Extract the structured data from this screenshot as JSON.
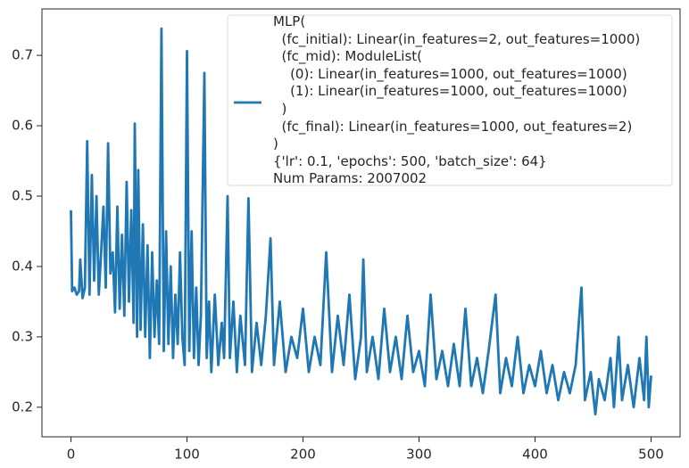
{
  "chart_data": {
    "type": "line",
    "x": [
      0,
      1,
      3,
      5,
      7,
      8,
      10,
      12,
      14,
      16,
      18,
      20,
      22,
      24,
      26,
      28,
      30,
      32,
      34,
      36,
      38,
      40,
      42,
      44,
      46,
      48,
      50,
      52,
      54,
      55,
      57,
      58,
      60,
      62,
      64,
      66,
      68,
      70,
      72,
      74,
      76,
      78,
      80,
      82,
      84,
      86,
      88,
      90,
      92,
      94,
      96,
      98,
      100,
      102,
      104,
      106,
      108,
      110,
      112,
      115,
      117,
      119,
      121,
      124,
      127,
      130,
      132,
      135,
      137,
      140,
      143,
      146,
      150,
      153,
      156,
      160,
      164,
      168,
      172,
      175,
      180,
      185,
      190,
      195,
      200,
      205,
      210,
      215,
      220,
      225,
      230,
      235,
      240,
      245,
      250,
      252,
      255,
      260,
      265,
      270,
      275,
      280,
      285,
      290,
      295,
      300,
      305,
      310,
      315,
      320,
      325,
      330,
      335,
      340,
      345,
      350,
      355,
      360,
      366,
      370,
      375,
      380,
      385,
      390,
      395,
      400,
      405,
      410,
      415,
      420,
      425,
      430,
      435,
      440,
      443,
      448,
      452,
      455,
      460,
      465,
      468,
      472,
      475,
      480,
      485,
      490,
      494,
      496,
      498,
      500
    ],
    "series": [
      {
        "name": "MLP(\n  (fc_initial): Linear(in_features=2, out_features=1000)\n  (fc_mid): ModuleList(\n    (0): Linear(in_features=1000, out_features=1000)\n    (1): Linear(in_features=1000, out_features=1000)\n  )\n  (fc_final): Linear(in_features=1000, out_features=2)\n)\n{'lr': 0.1, 'epochs': 500, 'batch_size': 64}\nNum Params: 2007002",
        "color": "#1f77b4",
        "values": [
          0.48,
          0.365,
          0.37,
          0.36,
          0.365,
          0.41,
          0.355,
          0.37,
          0.578,
          0.36,
          0.53,
          0.38,
          0.5,
          0.36,
          0.42,
          0.485,
          0.37,
          0.575,
          0.39,
          0.42,
          0.335,
          0.485,
          0.34,
          0.445,
          0.33,
          0.52,
          0.35,
          0.48,
          0.32,
          0.603,
          0.3,
          0.537,
          0.31,
          0.46,
          0.3,
          0.43,
          0.27,
          0.42,
          0.3,
          0.38,
          0.29,
          0.738,
          0.28,
          0.45,
          0.29,
          0.4,
          0.27,
          0.36,
          0.29,
          0.42,
          0.3,
          0.26,
          0.706,
          0.28,
          0.45,
          0.27,
          0.37,
          0.26,
          0.33,
          0.675,
          0.27,
          0.35,
          0.25,
          0.36,
          0.26,
          0.32,
          0.27,
          0.5,
          0.27,
          0.35,
          0.25,
          0.33,
          0.26,
          0.497,
          0.25,
          0.32,
          0.26,
          0.33,
          0.44,
          0.26,
          0.35,
          0.25,
          0.3,
          0.27,
          0.34,
          0.25,
          0.3,
          0.26,
          0.42,
          0.25,
          0.33,
          0.26,
          0.36,
          0.24,
          0.3,
          0.41,
          0.25,
          0.3,
          0.24,
          0.34,
          0.25,
          0.3,
          0.24,
          0.33,
          0.25,
          0.28,
          0.23,
          0.36,
          0.24,
          0.28,
          0.23,
          0.29,
          0.23,
          0.34,
          0.23,
          0.27,
          0.22,
          0.28,
          0.36,
          0.22,
          0.27,
          0.23,
          0.3,
          0.22,
          0.26,
          0.23,
          0.28,
          0.22,
          0.26,
          0.21,
          0.25,
          0.22,
          0.26,
          0.37,
          0.21,
          0.25,
          0.19,
          0.24,
          0.21,
          0.27,
          0.2,
          0.3,
          0.21,
          0.26,
          0.2,
          0.27,
          0.21,
          0.3,
          0.2,
          0.245
        ]
      }
    ],
    "xlim": [
      -25,
      525
    ],
    "ylim": [
      0.158,
      0.766
    ],
    "xticks": [
      0,
      100,
      200,
      300,
      400,
      500
    ],
    "yticks": [
      0.2,
      0.3,
      0.4,
      0.5,
      0.6,
      0.7
    ],
    "legend": "upper right"
  }
}
